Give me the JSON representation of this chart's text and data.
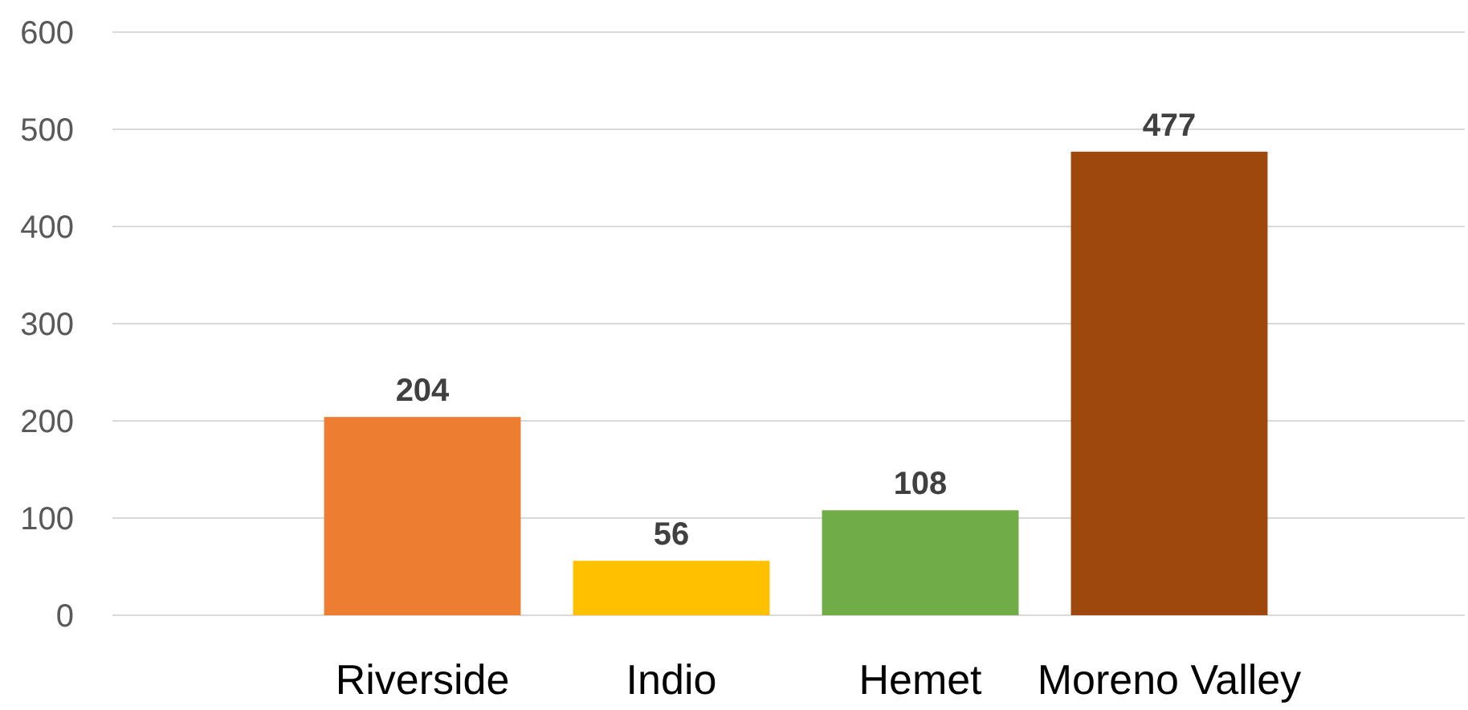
{
  "chart_data": {
    "type": "bar",
    "categories": [
      null,
      "Riverside",
      "Indio",
      "Hemet",
      "Moreno Valley"
    ],
    "values": [
      null,
      204,
      56,
      108,
      477
    ],
    "colors": [
      null,
      "#ed7d31",
      "#ffc000",
      "#70ad47",
      "#9e480e"
    ],
    "ylim": [
      0,
      600
    ],
    "yticks": [
      0,
      100,
      200,
      300,
      400,
      500,
      600
    ],
    "grid": "y",
    "data_labels": true
  }
}
